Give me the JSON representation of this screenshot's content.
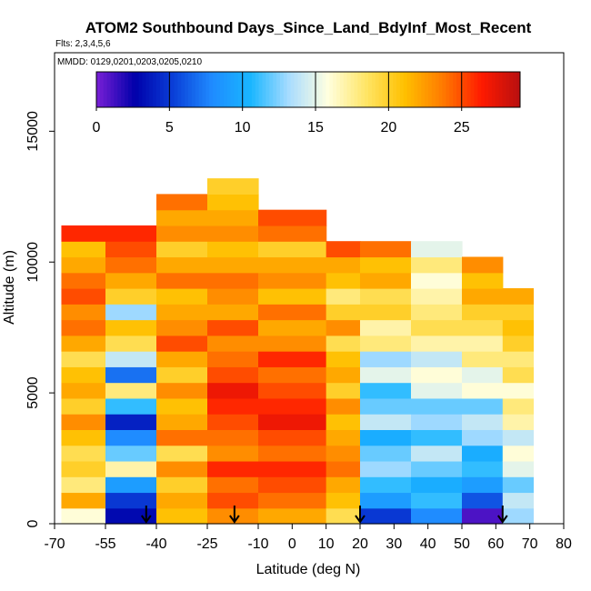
{
  "chart_data": {
    "type": "heatmap",
    "title": "ATOM2 Southbound Days_Since_Land_BdyInf_Most_Recent",
    "flights_label": "Flts: 2,3,4,5,6",
    "dates_label": "MMDD: 0129,0201,0203,0205,0210",
    "xlabel": "Latitude (deg N)",
    "ylabel": "Altitude (m)",
    "xlim": [
      -70,
      80
    ],
    "ylim": [
      0,
      18000
    ],
    "x_tick_labels": [
      "-70",
      "-55",
      "-40",
      "-25",
      "-10",
      "0",
      "10",
      "20",
      "30",
      "40",
      "50",
      "60",
      "70",
      "80"
    ],
    "x_tick_values": [
      -70,
      -55,
      -40,
      -25,
      -10,
      0,
      10,
      20,
      30,
      40,
      50,
      60,
      70,
      80
    ],
    "y_tick_labels": [
      "0",
      "5000",
      "10000",
      "15000"
    ],
    "y_tick_values": [
      0,
      5000,
      10000,
      15000
    ],
    "colorbar": {
      "range": [
        0,
        29
      ],
      "tick_labels": [
        "0",
        "5",
        "10",
        "15",
        "20",
        "25"
      ],
      "tick_values": [
        0,
        5,
        10,
        15,
        20,
        25
      ],
      "colors": [
        "#7a1fd6",
        "#0000aa",
        "#0a3fd8",
        "#1f8bff",
        "#19b6ff",
        "#a8dcff",
        "#ffffe0",
        "#ffe566",
        "#ffc000",
        "#ff7a00",
        "#ff1a00",
        "#b81010"
      ]
    },
    "arrows_lat": [
      -43,
      -17,
      20,
      62
    ],
    "profiles": [
      {
        "lat_min": -68,
        "lat_max": -55,
        "values": [
          16,
          22,
          18,
          20,
          19,
          21,
          23,
          20,
          22,
          21,
          19,
          22,
          24,
          23,
          25,
          24,
          22,
          21,
          26
        ]
      },
      {
        "lat_min": -55,
        "lat_max": -40,
        "values": [
          3,
          5,
          9,
          17,
          12,
          8,
          4,
          11,
          18,
          7,
          14,
          19,
          21,
          13,
          20,
          22,
          24,
          25,
          26
        ]
      },
      {
        "lat_min": -40,
        "lat_max": -25,
        "values": [
          21,
          22,
          20,
          23,
          19,
          24,
          22,
          21,
          23,
          20,
          22,
          25,
          23,
          22,
          21,
          24,
          22,
          20,
          23,
          22,
          24
        ]
      },
      {
        "lat_min": -25,
        "lat_max": -10,
        "values": [
          23,
          25,
          24,
          26,
          23,
          24,
          25,
          26,
          27,
          25,
          24,
          23,
          25,
          22,
          23,
          24,
          22,
          21,
          23,
          22,
          21,
          20
        ]
      },
      {
        "lat_min": -10,
        "lat_max": 10,
        "values": [
          22,
          24,
          25,
          26,
          24,
          25,
          27,
          26,
          25,
          24,
          26,
          23,
          22,
          24,
          21,
          23,
          22,
          20,
          24,
          25
        ]
      },
      {
        "lat_min": 10,
        "lat_max": 20,
        "values": [
          19,
          21,
          22,
          24,
          23,
          22,
          21,
          23,
          20,
          22,
          21,
          19,
          23,
          20,
          18,
          21,
          22,
          25
        ]
      },
      {
        "lat_min": 20,
        "lat_max": 35,
        "values": [
          5,
          9,
          11,
          13,
          12,
          10,
          14,
          12,
          11,
          15,
          13,
          18,
          17,
          20,
          19,
          22,
          21,
          24
        ]
      },
      {
        "lat_min": 35,
        "lat_max": 50,
        "values": [
          8,
          11,
          10,
          12,
          14,
          11,
          13,
          12,
          15,
          16,
          14,
          17,
          19,
          18,
          17,
          16,
          18,
          15
        ]
      },
      {
        "lat_min": 50,
        "lat_max": 62,
        "values": [
          1,
          6,
          9,
          11,
          10,
          13,
          14,
          12,
          16,
          15,
          18,
          17,
          19,
          20,
          22,
          21,
          23
        ]
      },
      {
        "lat_min": 62,
        "lat_max": 71,
        "values": [
          13,
          14,
          12,
          15,
          16,
          14,
          17,
          18,
          16,
          19,
          18,
          20,
          21,
          20,
          22
        ]
      }
    ]
  }
}
